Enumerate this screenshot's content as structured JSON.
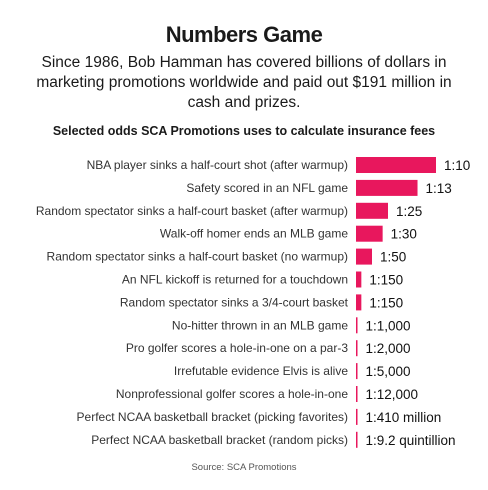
{
  "header": {
    "title": "Numbers Game",
    "subtitle": "Since 1986, Bob Hamman has covered billions of dollars in marketing promotions worldwide and paid out $191 million in cash and prizes.",
    "chart_heading": "Selected odds SCA Promotions uses to calculate insurance fees",
    "source": "Source:  SCA Promotions"
  },
  "colors": {
    "bar": "#e8175d",
    "text": "#1a1a1a",
    "muted": "#555555"
  },
  "chart_data": {
    "type": "bar",
    "orientation": "horizontal",
    "title": "Selected odds SCA Promotions uses to calculate insurance fees",
    "xlabel": "",
    "ylabel": "",
    "grid": false,
    "categories": [
      "NBA player sinks a half-court shot (after warmup)",
      "Safety scored in an NFL game",
      "Random spectator sinks a half-court basket (after warmup)",
      "Walk-off homer ends an MLB game",
      "Random spectator sinks a half-court basket (no warmup)",
      "An NFL kickoff is returned for a touchdown",
      "Random spectator sinks a 3/4-court basket",
      "No-hitter thrown in an MLB game",
      "Pro golfer scores a hole-in-one on a par-3",
      "Irrefutable evidence Elvis is alive",
      "Nonprofessional golfer scores a hole-in-one",
      "Perfect NCAA basketball bracket (picking favorites)",
      "Perfect NCAA basketball bracket (random picks)"
    ],
    "value_labels": [
      "1:10",
      "1:13",
      "1:25",
      "1:30",
      "1:50",
      "1:150",
      "1:150",
      "1:1,000",
      "1:2,000",
      "1:5,000",
      "1:12,000",
      "1:410 million",
      "1:9.2 quintillion"
    ],
    "values": [
      0.1,
      0.0769,
      0.04,
      0.0333,
      0.02,
      0.00667,
      0.00667,
      0.001,
      0.0005,
      0.0002,
      8.33e-05,
      2.4e-09,
      1e-19
    ]
  }
}
